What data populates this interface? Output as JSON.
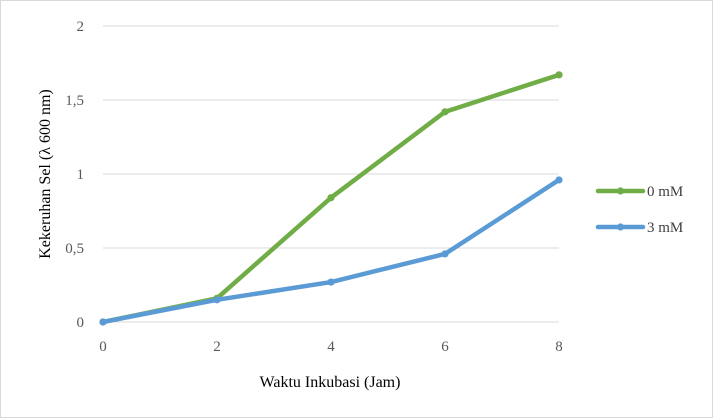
{
  "chart_data": {
    "type": "line",
    "x": [
      0,
      2,
      4,
      6,
      8
    ],
    "series": [
      {
        "name": "0 mM",
        "values": [
          0,
          0.16,
          0.84,
          1.42,
          1.67
        ],
        "color": "#70ad47"
      },
      {
        "name": "3 mM",
        "values": [
          0,
          0.15,
          0.27,
          0.46,
          0.96
        ],
        "color": "#5b9bd5"
      }
    ],
    "xlabel": "Waktu Inkubasi (Jam)",
    "ylabel": "Kekeruhan Sel (λ 600 nm)",
    "xlim": [
      0,
      8
    ],
    "ylim": [
      0,
      2
    ],
    "xticks": [
      0,
      2,
      4,
      6,
      8
    ],
    "xtick_labels": [
      "0",
      "2",
      "4",
      "6",
      "8"
    ],
    "yticks": [
      0,
      0.5,
      1,
      1.5,
      2
    ],
    "ytick_labels": [
      "0",
      "0,5",
      "1",
      "1,5",
      "2"
    ],
    "grid": "horizontal",
    "gridline_color": "#d9d9d9",
    "legend_position": "right",
    "marker": "circle"
  }
}
